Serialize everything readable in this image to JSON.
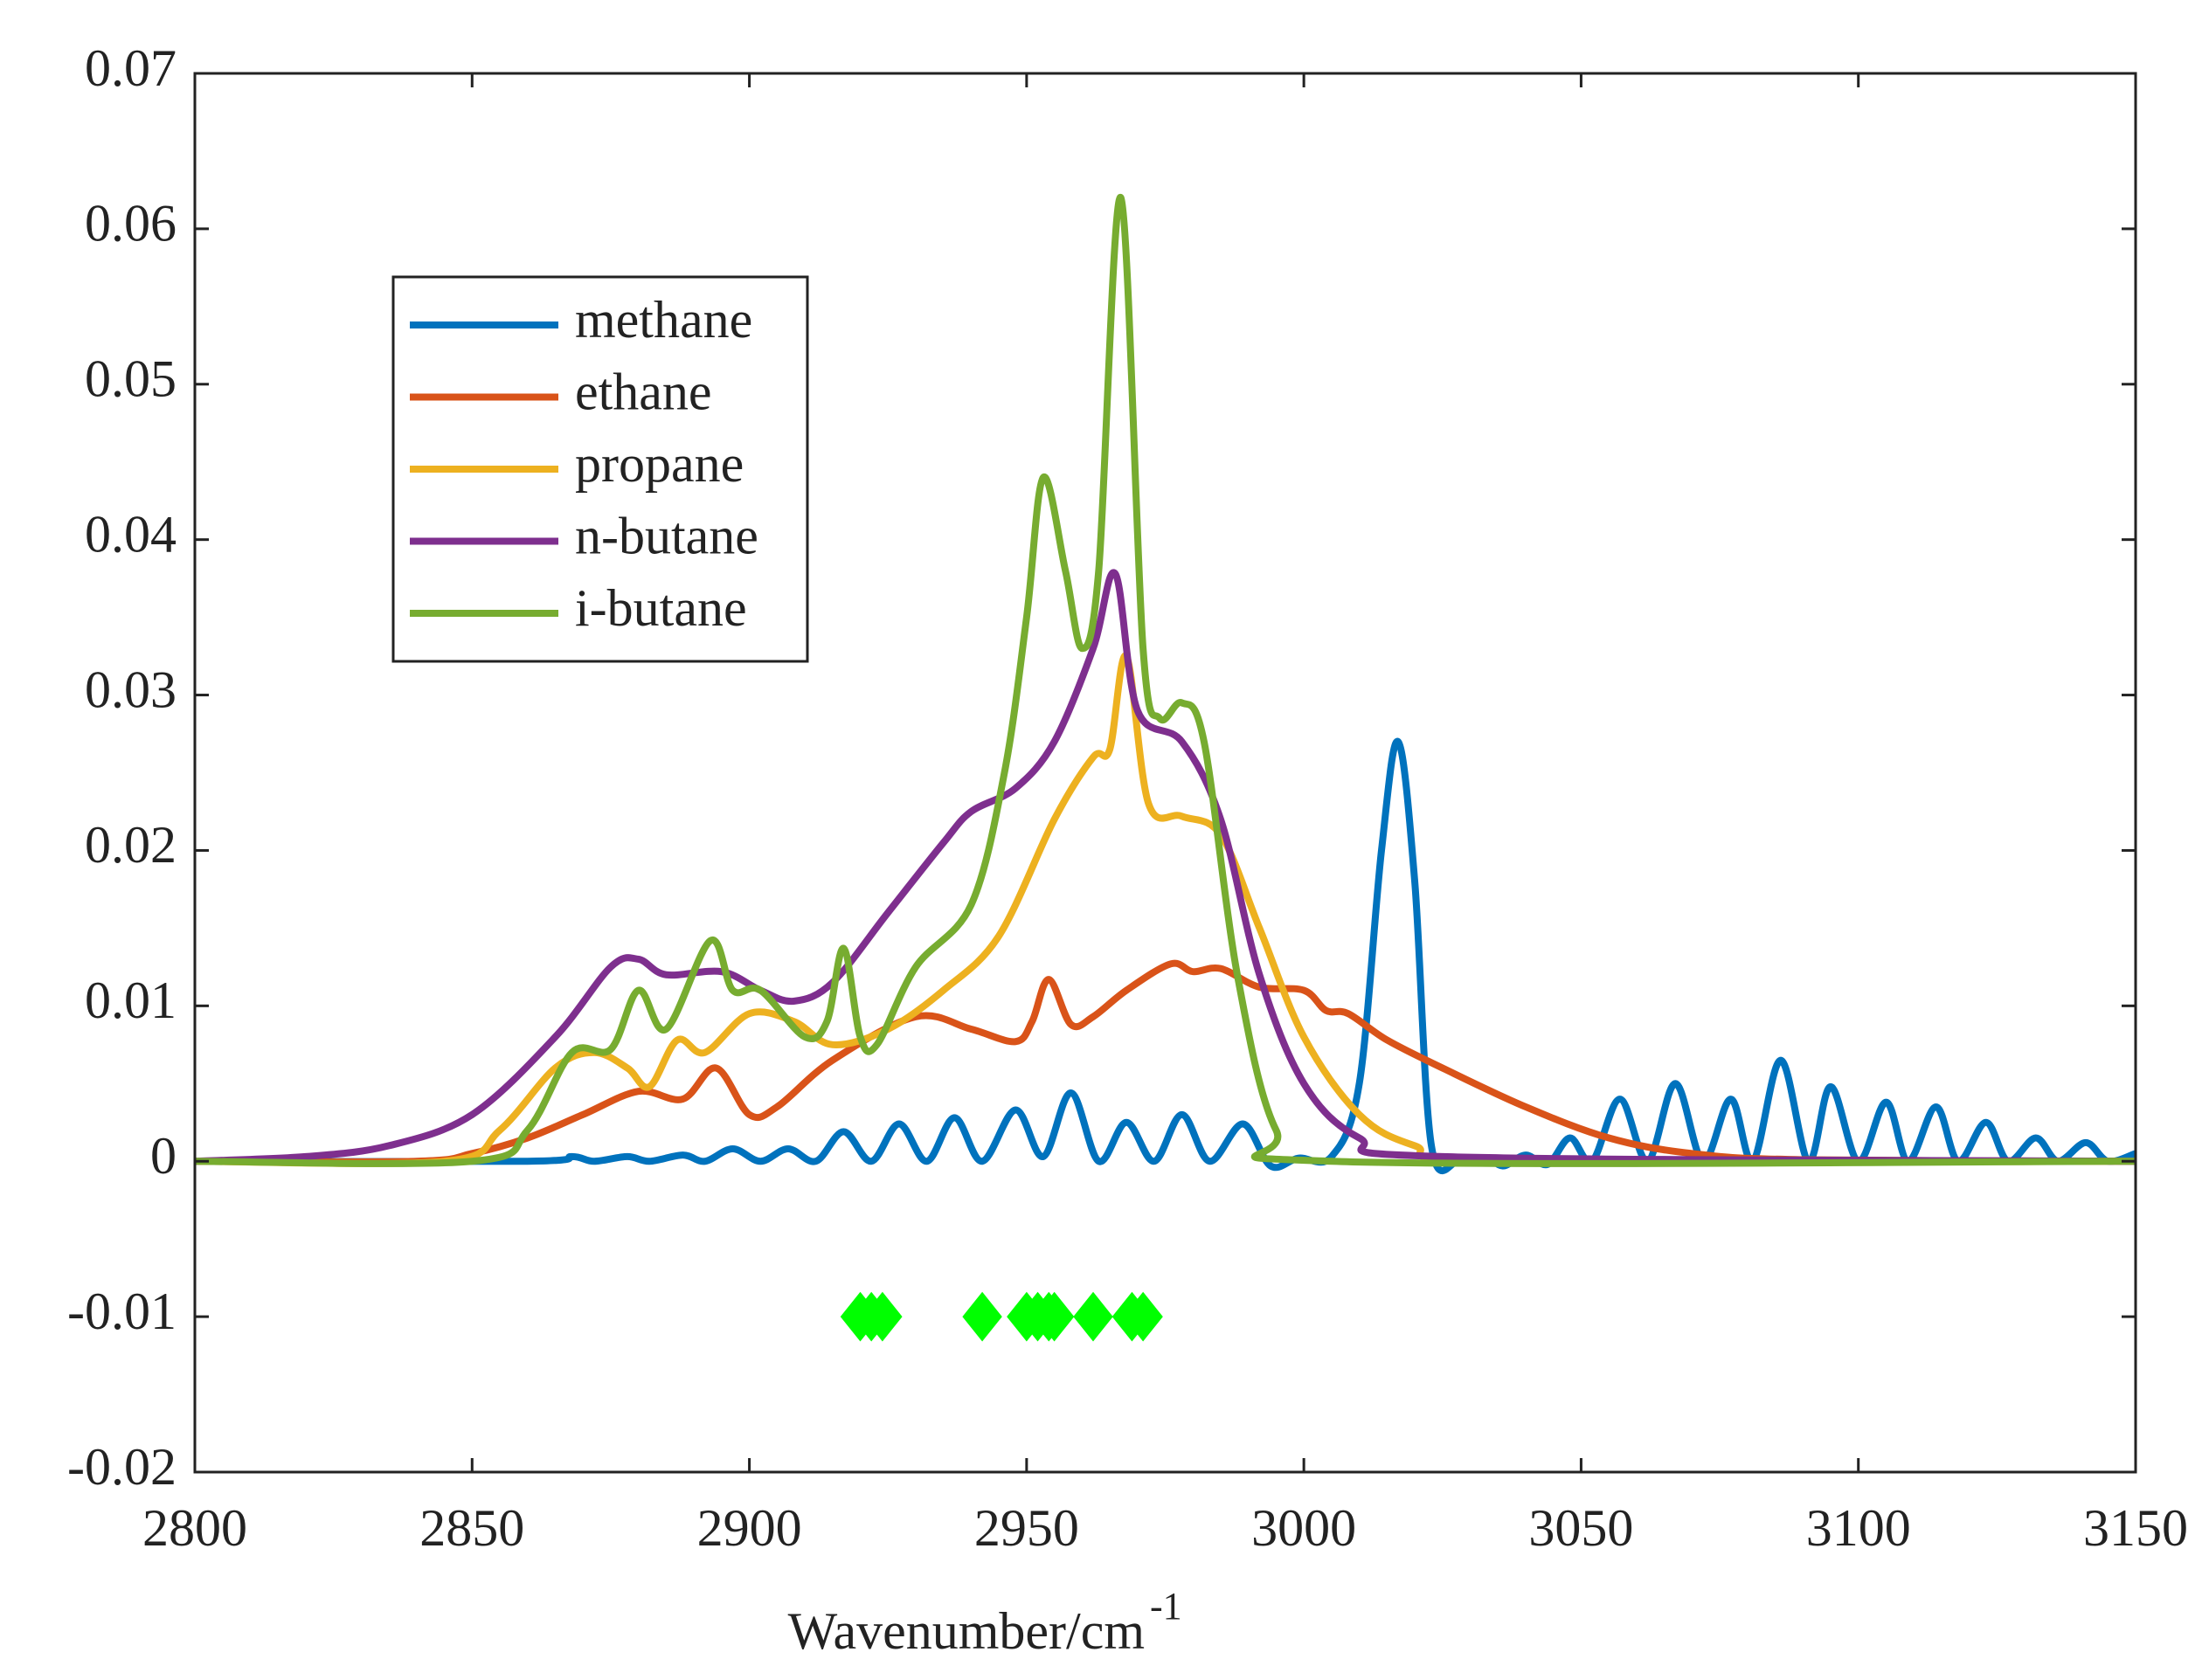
{
  "chart_data": {
    "type": "line",
    "xlabel": "Wavenumber/cm",
    "xlabel_superscript": "-1",
    "xlim": [
      2800,
      3150
    ],
    "xticks": [
      2800,
      2850,
      2900,
      2950,
      3000,
      3050,
      3100,
      3150
    ],
    "ylim": [
      -0.02,
      0.07
    ],
    "yticks": [
      -0.02,
      -0.01,
      0,
      0.01,
      0.02,
      0.03,
      0.04,
      0.05,
      0.06,
      0.07
    ],
    "legend": "upper left",
    "series": [
      {
        "name": "methane",
        "color": "#0072BD",
        "x": [
          2800,
          2860,
          2868,
          2872,
          2878,
          2882,
          2888,
          2892,
          2897,
          2902,
          2907,
          2912,
          2917,
          2922,
          2927,
          2932,
          2937,
          2942,
          2948,
          2953,
          2958,
          2963,
          2968,
          2973,
          2978,
          2983,
          2989,
          2994,
          2999,
          3005,
          3010,
          3014,
          3017,
          3020,
          3023,
          3028,
          3033,
          3036,
          3040,
          3044,
          3048,
          3052,
          3057,
          3062,
          3067,
          3072,
          3077,
          3081,
          3086,
          3091,
          3095,
          3100,
          3105,
          3109,
          3114,
          3118,
          3123,
          3127,
          3132,
          3136,
          3141,
          3145,
          3150
        ],
        "values": [
          0,
          0,
          0.0003,
          0,
          0.0003,
          0,
          0.0004,
          0,
          0.0008,
          0,
          0.0008,
          0,
          0.0019,
          0,
          0.0024,
          0,
          0.0028,
          0,
          0.0033,
          0.0003,
          0.0044,
          0,
          0.0025,
          0,
          0.003,
          0,
          0.0024,
          -0.0003,
          0.0002,
          0.0003,
          0.005,
          0.02,
          0.027,
          0.018,
          0.001,
          0,
          0.0002,
          -0.0003,
          0.0004,
          -0.0002,
          0.0015,
          0,
          0.004,
          0,
          0.005,
          0,
          0.004,
          0,
          0.0065,
          0,
          0.0048,
          0,
          0.0038,
          0,
          0.0035,
          0,
          0.0025,
          0,
          0.0015,
          0,
          0.0012,
          0,
          0.0005
        ]
      },
      {
        "name": "ethane",
        "color": "#D95319",
        "x": [
          2800,
          2840,
          2850,
          2860,
          2870,
          2880,
          2888,
          2894,
          2900,
          2905,
          2915,
          2930,
          2940,
          2948,
          2951,
          2954,
          2958,
          2962,
          2968,
          2976,
          2980,
          2985,
          2992,
          3000,
          3004,
          3008,
          3015,
          3025,
          3040,
          3055,
          3070,
          3090,
          3150
        ],
        "values": [
          0,
          0,
          0.0005,
          0.0015,
          0.003,
          0.0045,
          0.004,
          0.006,
          0.003,
          0.0035,
          0.0065,
          0.0093,
          0.0085,
          0.0077,
          0.009,
          0.0117,
          0.0088,
          0.0093,
          0.011,
          0.0127,
          0.0122,
          0.0124,
          0.0112,
          0.011,
          0.0097,
          0.0095,
          0.0078,
          0.006,
          0.0035,
          0.0015,
          0.0005,
          0.0001,
          0
        ]
      },
      {
        "name": "propane",
        "color": "#EDB120",
        "x": [
          2800,
          2845,
          2855,
          2865,
          2872,
          2878,
          2882,
          2887,
          2892,
          2900,
          2908,
          2915,
          2925,
          2935,
          2945,
          2955,
          2962,
          2965,
          2968,
          2972,
          2978,
          2985,
          2992,
          3000,
          3010,
          3020,
          3035,
          3150
        ],
        "values": [
          0,
          0,
          0.002,
          0.006,
          0.007,
          0.006,
          0.0048,
          0.0078,
          0.007,
          0.0095,
          0.009,
          0.0075,
          0.0085,
          0.011,
          0.0145,
          0.022,
          0.026,
          0.0265,
          0.0325,
          0.023,
          0.0222,
          0.021,
          0.015,
          0.008,
          0.003,
          0.001,
          0,
          0
        ]
      },
      {
        "name": "n-butane",
        "color": "#7E2F8E",
        "x": [
          2800,
          2820,
          2835,
          2850,
          2865,
          2875,
          2880,
          2885,
          2895,
          2902,
          2908,
          2915,
          2925,
          2935,
          2940,
          2948,
          2955,
          2962,
          2966,
          2970,
          2978,
          2985,
          2992,
          3000,
          3010,
          3025,
          3150
        ],
        "values": [
          0,
          0.0003,
          0.001,
          0.003,
          0.008,
          0.0125,
          0.013,
          0.012,
          0.0122,
          0.011,
          0.0103,
          0.0115,
          0.016,
          0.0205,
          0.0225,
          0.024,
          0.027,
          0.033,
          0.0378,
          0.029,
          0.027,
          0.022,
          0.012,
          0.005,
          0.0015,
          0.0003,
          0
        ]
      },
      {
        "name": "i-butane",
        "color": "#77AC30",
        "x": [
          2800,
          2850,
          2860,
          2868,
          2875,
          2880,
          2885,
          2893,
          2897,
          2902,
          2910,
          2914,
          2917,
          2920,
          2923,
          2930,
          2940,
          2946,
          2950,
          2953,
          2957,
          2960,
          2963,
          2967,
          2971,
          2974,
          2978,
          2982,
          2988,
          2995,
          3005,
          3150
        ],
        "values": [
          0,
          0,
          0.002,
          0.007,
          0.0072,
          0.011,
          0.0085,
          0.0142,
          0.011,
          0.011,
          0.008,
          0.009,
          0.0137,
          0.008,
          0.0075,
          0.0125,
          0.0165,
          0.025,
          0.035,
          0.044,
          0.038,
          0.033,
          0.038,
          0.062,
          0.033,
          0.0285,
          0.0295,
          0.027,
          0.012,
          0.002,
          0,
          0
        ]
      }
    ],
    "markers": {
      "color": "#00FF00",
      "x": [
        2920,
        2922,
        2924,
        2942,
        2950,
        2952,
        2954,
        2955,
        2962,
        2969,
        2971
      ],
      "values": [
        -0.01,
        -0.01,
        -0.01,
        -0.01,
        -0.01,
        -0.01,
        -0.01,
        -0.01,
        -0.01,
        -0.01,
        -0.01
      ]
    }
  }
}
